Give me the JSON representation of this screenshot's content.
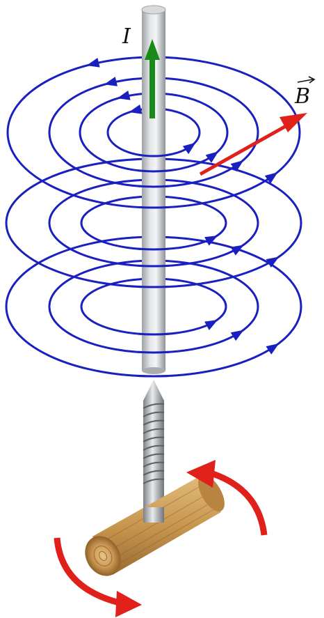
{
  "labels": {
    "current": "I",
    "field": "B"
  },
  "colors": {
    "field_lines": "#1a1fc0",
    "current_arrow": "#1a8a1a",
    "field_vector": "#e0201a",
    "rotation_arrows": "#e0201a",
    "wire": "#c9cccf",
    "handle": "#c89a55",
    "background": "#ffffff"
  },
  "icons": {
    "current_arrow": "arrow-up-icon",
    "field_vector": "vector-arrow-icon",
    "rotation": "curved-arrow-icon"
  }
}
